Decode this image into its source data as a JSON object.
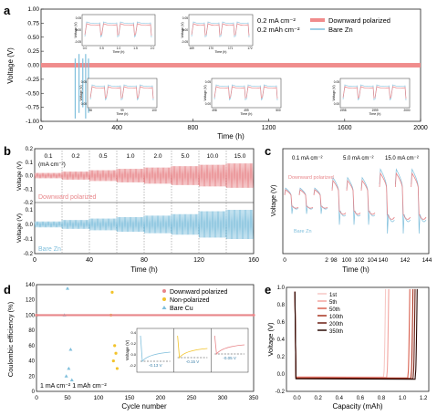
{
  "colors": {
    "red": "#e8868a",
    "redfill": "#f08c8c",
    "blue": "#7fbfdc",
    "yellow": "#f2c32a",
    "dark": "#3a1410",
    "pink": "#f2b6b4"
  },
  "panels": {
    "a": "a",
    "b": "b",
    "c": "c",
    "d": "d",
    "e": "e"
  },
  "chart_data": [
    {
      "panel": "a",
      "type": "line",
      "xlabel": "Time (h)",
      "ylabel": "Voltage (V)",
      "xlim": [
        0,
        2000
      ],
      "ylim": [
        -1.0,
        1.0
      ],
      "xticks": [
        "0",
        "400",
        "800",
        "1200",
        "1600",
        "2000"
      ],
      "yticks": [
        "1.00",
        "0.75",
        "0.50",
        "0.25",
        "0.00",
        "-0.25",
        "-0.50",
        "-0.75",
        "-1.00"
      ],
      "annotation_lines": [
        "0.2 mA cm⁻²",
        "0.2 mAh cm⁻²"
      ],
      "series": [
        {
          "name": "Downward polarized",
          "band": [
            -0.04,
            0.04
          ],
          "x": [
            0,
            2000
          ]
        },
        {
          "name": "Bare Zn",
          "spikes_x": [
            180,
            200,
            220,
            235,
            250
          ]
        }
      ],
      "insets": [
        {
          "xlabel": "Time (h)",
          "ylabel": "Voltage (V)",
          "xticks": [
            "0.0",
            "0.5",
            "1.0",
            "1.5",
            "2.0"
          ],
          "yticks": [
            "0.05",
            "0.00",
            "-0.05"
          ]
        },
        {
          "xlabel": "Time (h)",
          "ylabel": "Voltage (V)",
          "xticks": [
            "169",
            "170",
            "171",
            "172"
          ],
          "yticks": [
            "0.05",
            "0.00",
            "-0.05"
          ]
        },
        {
          "xlabel": "Time (h)",
          "ylabel": "Voltage (V)",
          "xticks": [
            "98",
            "99",
            "100"
          ],
          "yticks": [
            "0.05",
            "0.00"
          ]
        },
        {
          "xlabel": "Time (h)",
          "ylabel": "Voltage (V)",
          "xticks": [
            "498",
            "499",
            "500"
          ],
          "yticks": [
            "0.05",
            "0.00"
          ]
        },
        {
          "xlabel": "Time (h)",
          "ylabel": "Voltage (V)",
          "xticks": [
            "1998",
            "1999",
            "2000"
          ],
          "yticks": [
            "0.05",
            "0.00"
          ]
        }
      ]
    },
    {
      "panel": "b",
      "type": "line",
      "xlabel": "Time (h)",
      "ylabel": "Voltage (V)",
      "xlim": [
        0,
        160
      ],
      "ylim": [
        -0.2,
        0.2
      ],
      "xticks": [
        "0",
        "40",
        "80",
        "120",
        "160"
      ],
      "yticks_top": [
        "0.2",
        "0.1",
        "0.0",
        "-0.1",
        "-0.2"
      ],
      "yticks_bottom": [
        "0.1",
        "0.0",
        "-0.1",
        "-0.2"
      ],
      "rate_labels": [
        "0.1",
        "0.2",
        "0.5",
        "1.0",
        "2.0",
        "5.0",
        "10.0",
        "15.0"
      ],
      "rate_unit": "(mA cm⁻²)",
      "series": [
        {
          "name": "Downward polarized",
          "amplitude": [
            0.02,
            0.03,
            0.04,
            0.05,
            0.06,
            0.07,
            0.08,
            0.09
          ]
        },
        {
          "name": "Bare Zn",
          "amplitude": [
            0.02,
            0.03,
            0.04,
            0.05,
            0.06,
            0.07,
            0.09,
            0.1
          ]
        }
      ]
    },
    {
      "panel": "c",
      "type": "line",
      "xlabel": "Time (h)",
      "ylabel": "Voltage (V)",
      "xticks": [
        "0",
        "2",
        "98",
        "100",
        "102",
        "104",
        "140",
        "142",
        "144"
      ],
      "rate_labels": [
        "0.1 mA cm⁻²",
        "5.0 mA cm⁻²",
        "15.0 mA cm⁻²"
      ],
      "series": [
        {
          "name": "Downward polarized"
        },
        {
          "name": "Bare Zn"
        }
      ]
    },
    {
      "panel": "d",
      "type": "scatter",
      "xlabel": "Cycle number",
      "ylabel": "Coulombic efficiency (%)",
      "xlim": [
        0,
        350
      ],
      "ylim": [
        0,
        140
      ],
      "xticks": [
        "0",
        "50",
        "100",
        "150",
        "200",
        "250",
        "300",
        "350"
      ],
      "yticks": [
        "0",
        "20",
        "40",
        "60",
        "80",
        "100",
        "120",
        "140"
      ],
      "condition": "1 mA cm⁻² 1 mAh cm⁻²",
      "series": [
        {
          "name": "Downward polarized",
          "x": [
            0,
            350
          ],
          "y": [
            100,
            100
          ]
        },
        {
          "name": "Non-polarized",
          "x": [
            0,
            120,
            122,
            124,
            126,
            128,
            130
          ],
          "y": [
            100,
            100,
            130,
            40,
            60,
            50,
            30
          ]
        },
        {
          "name": "Bare Cu",
          "x": [
            0,
            45,
            48,
            50,
            52,
            55,
            57
          ],
          "y": [
            100,
            100,
            20,
            135,
            30,
            55,
            15
          ]
        }
      ],
      "inset": {
        "ylabel": "Voltage (V)",
        "yticks": [
          "0.4",
          "0.2",
          "0.0",
          "-0.2"
        ],
        "labels": [
          "-0.13 V",
          "-0.15 V",
          "-0.05 V"
        ]
      }
    },
    {
      "panel": "e",
      "type": "line",
      "xlabel": "Capacity (mAh)",
      "ylabel": "Voltage (V)",
      "xlim": [
        -0.1,
        1.25
      ],
      "ylim": [
        -0.2,
        1.0
      ],
      "xticks": [
        "0.0",
        "0.2",
        "0.4",
        "0.6",
        "0.8",
        "1.0",
        "1.2"
      ],
      "yticks": [
        "-0.2",
        "0.0",
        "0.2",
        "0.4",
        "0.6",
        "0.8",
        "1.0"
      ],
      "series": [
        {
          "name": "1st",
          "end": 0.82,
          "color": "#f7c9c6"
        },
        {
          "name": "5th",
          "end": 0.85,
          "color": "#f2a49f"
        },
        {
          "name": "50th",
          "end": 1.05,
          "color": "#d8604f"
        },
        {
          "name": "100th",
          "end": 1.08,
          "color": "#a8321f"
        },
        {
          "name": "200th",
          "end": 1.1,
          "color": "#6b1e12"
        },
        {
          "name": "350th",
          "end": 1.12,
          "color": "#2a0a06"
        }
      ]
    }
  ]
}
